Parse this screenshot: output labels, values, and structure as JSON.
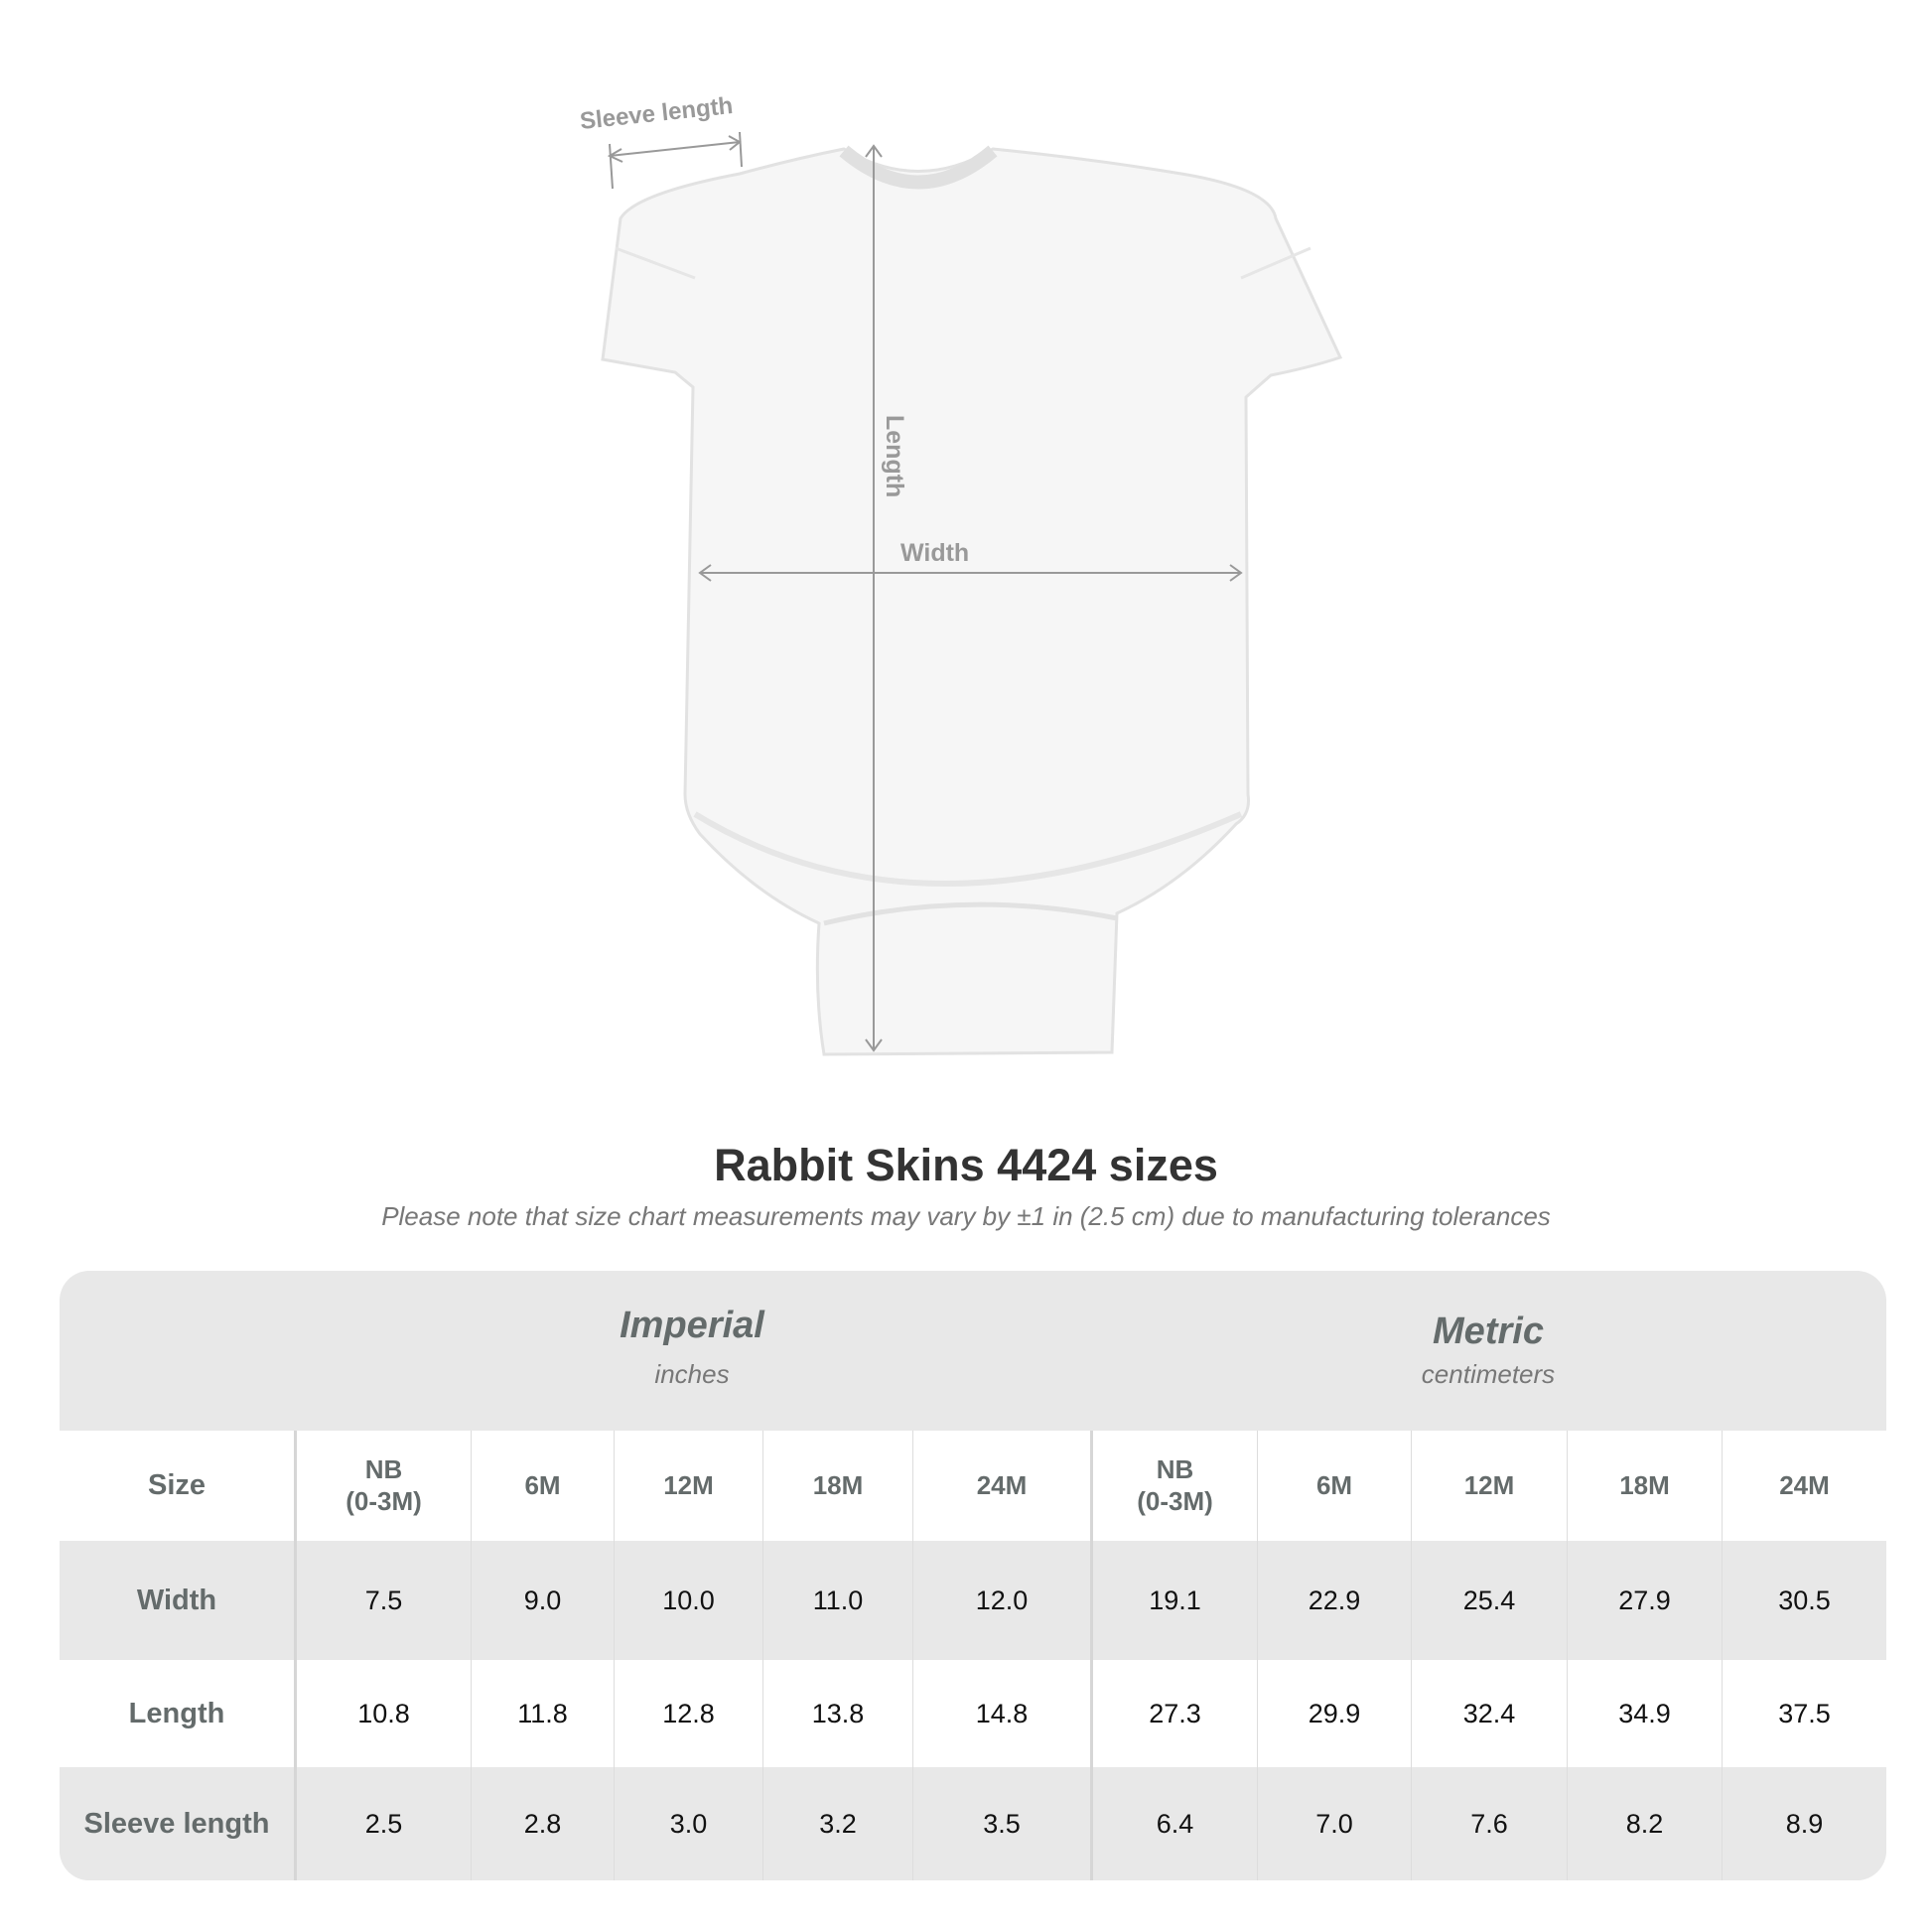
{
  "diagram": {
    "labels": {
      "sleeve": "Sleeve length",
      "length": "Length",
      "width": "Width"
    }
  },
  "title": "Rabbit Skins 4424 sizes",
  "subtitle": "Please note that size chart measurements may vary by ±1 in (2.5 cm) due to manufacturing tolerances",
  "table": {
    "imperial": {
      "name": "Imperial",
      "unit": "inches"
    },
    "metric": {
      "name": "Metric",
      "unit": "centimeters"
    },
    "size_label": "Size",
    "sizes": [
      "NB\n(0-3M)",
      "6M",
      "12M",
      "18M",
      "24M",
      "NB\n(0-3M)",
      "6M",
      "12M",
      "18M",
      "24M"
    ],
    "rows": [
      {
        "label": "Width",
        "values": [
          "7.5",
          "9.0",
          "10.0",
          "11.0",
          "12.0",
          "19.1",
          "22.9",
          "25.4",
          "27.9",
          "30.5"
        ]
      },
      {
        "label": "Length",
        "values": [
          "10.8",
          "11.8",
          "12.8",
          "13.8",
          "14.8",
          "27.3",
          "29.9",
          "32.4",
          "34.9",
          "37.5"
        ]
      },
      {
        "label": "Sleeve length",
        "values": [
          "2.5",
          "2.8",
          "3.0",
          "3.2",
          "3.5",
          "6.4",
          "7.0",
          "7.6",
          "8.2",
          "8.9"
        ]
      }
    ]
  },
  "colors": {
    "header_bg": "#e8e8e8",
    "label_text": "#646b6b",
    "title_text": "#333333"
  }
}
